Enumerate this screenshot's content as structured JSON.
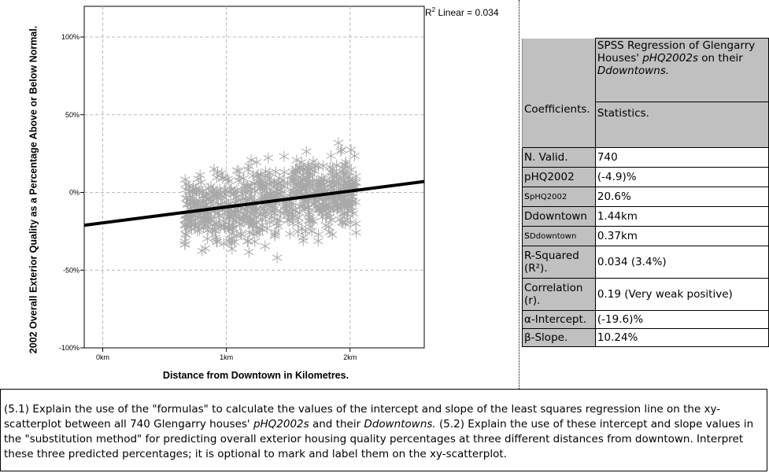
{
  "chart_data": {
    "type": "scatter",
    "title": "",
    "xlabel": "Distance from Downtown in Kilometres.",
    "ylabel": "2002 Overall Exterior Quality as a Percentage Above or Below Normal.",
    "x_ticks": [
      "0km",
      "1km",
      "2km"
    ],
    "y_ticks": [
      "100%",
      "50%",
      "0%",
      "-50%",
      "-100%"
    ],
    "xlim": [
      -0.15,
      2.6
    ],
    "ylim": [
      -100,
      115
    ],
    "grid": true,
    "marker": "asterisk",
    "r2_label": "R",
    "r2_sup": "2",
    "r2_text": "Linear = 0.034",
    "regression": {
      "intercept": -19.6,
      "slope": 10.24
    },
    "n_points": 740,
    "point_color": "#a8a8a8",
    "line_color": "#000000"
  },
  "table": {
    "header_title": "SPSS Regression of Glengarry Houses' ",
    "header_italic": "pHQ2002s",
    "header_mid": " on their ",
    "header_italic2": "Ddowntowns.",
    "coefficients": "Coefficients.",
    "statistics": "Statistics.",
    "rows": [
      {
        "label": "N.  Valid.",
        "value": "740"
      },
      {
        "label": "pHQ2002",
        "value": "(-4.9)%"
      },
      {
        "label": "s",
        "label_sub": "pHQ2002",
        "value": "20.6%"
      },
      {
        "label": "Ddowntown",
        "value": "1.44km"
      },
      {
        "label": "s",
        "label_sub": "Ddowntown",
        "value": "0.37km"
      },
      {
        "label": "R-Squared (R²).",
        "value": "0.034 (3.4%)"
      },
      {
        "label": "Correlation (r).",
        "value": "0.19 (Very weak positive)"
      },
      {
        "label": "α-Intercept.",
        "value": "(-19.6)%"
      },
      {
        "label": "β-Slope.",
        "value": "10.24%"
      }
    ]
  },
  "question": {
    "p1": "(5.1) Explain the use of the \"formulas\" to calculate the values of the intercept and slope of the least squares regression line on the xy-scatterplot between all 740 Glengarry houses' ",
    "i1": "pHQ2002s",
    "p2": " and their ",
    "i2": "Ddowntowns.",
    "p3": " (5.2) Explain the use of these intercept and slope values in the \"substitution method\" for predicting overall exterior housing quality percentages at three different distances from downtown. Interpret these three predicted percentages; it is optional to mark and label them on the xy-scatterplot."
  }
}
